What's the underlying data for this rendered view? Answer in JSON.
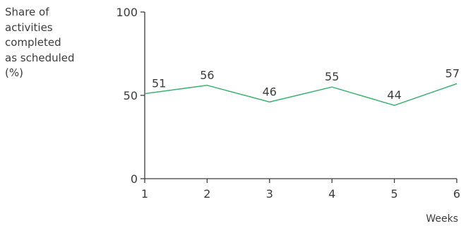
{
  "chart_data": {
    "type": "line",
    "ylabel_lines": [
      "Share of",
      "activities",
      "completed",
      "as scheduled",
      "(%)"
    ],
    "xlabel": "Weeks",
    "x": [
      1,
      2,
      3,
      4,
      5,
      6
    ],
    "series": [
      {
        "values": [
          51,
          56,
          46,
          55,
          44,
          57
        ]
      }
    ],
    "ylim": [
      0,
      100
    ],
    "yticks": [
      0,
      50,
      100
    ],
    "xticks": [
      1,
      2,
      3,
      4,
      5,
      6
    ],
    "grid": false,
    "legend": "none",
    "colors": {
      "line": "#3cb371",
      "axis": "#3c3c3c",
      "text": "#3c3c3c"
    }
  }
}
